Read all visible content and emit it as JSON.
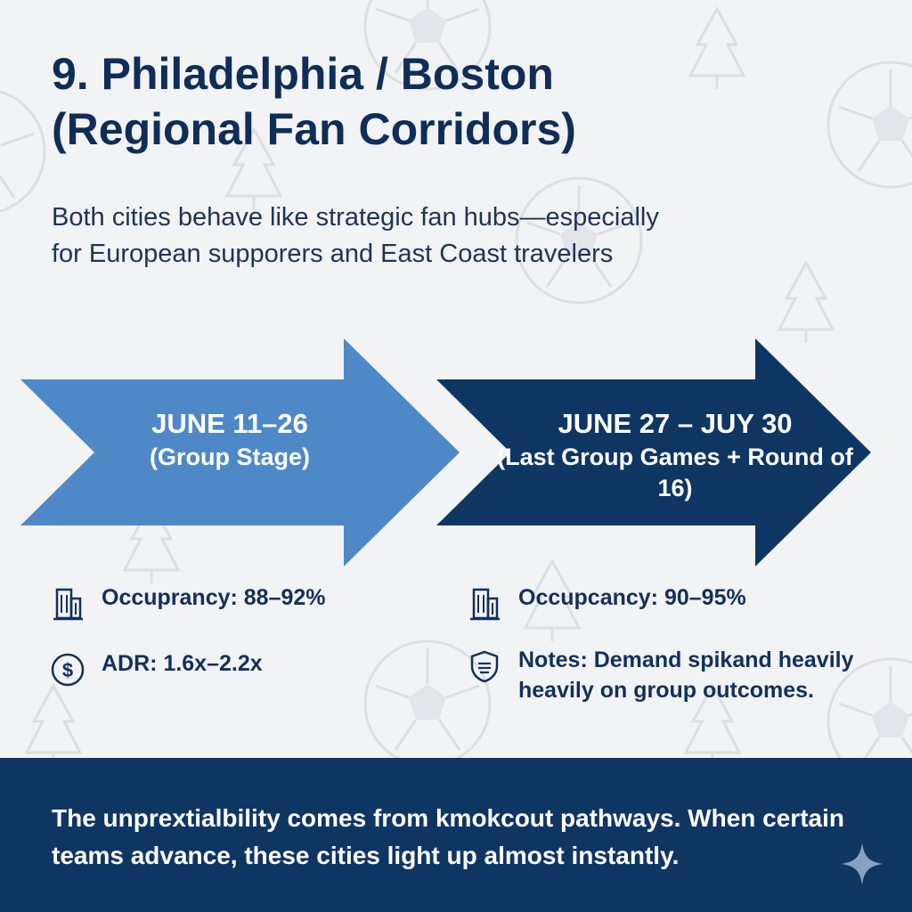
{
  "title": {
    "line1": "9. Philadelphia / Boston",
    "line2": "(Regional Fan Corridors)"
  },
  "subtitle": "Both cities behave like strategic fan hubs—especially for European supporers and East Coast travelers",
  "phases": [
    {
      "date": "JUNE 11–26",
      "label": "(Group Stage)",
      "color": "#4f88c6",
      "stats": [
        {
          "icon": "building-icon",
          "text": "Occuprancy: 88–92%"
        },
        {
          "icon": "dollar-circle-icon",
          "text": "ADR: 1.6x–2.2x"
        }
      ]
    },
    {
      "date": "JUNE 27 – JUY 30",
      "label": "(Last Group Games + Round of 16)",
      "color": "#0f3563",
      "stats": [
        {
          "icon": "building-icon",
          "text": "Occupcancy: 90–95%"
        },
        {
          "icon": "shield-icon",
          "text": "Notes: Demand spikand heavily heavily on group outcomes."
        }
      ]
    }
  ],
  "footer": {
    "text": "The unprextialbility comes from kmokcout pathways. When certain teams advance, these cities light up almost instantly.",
    "color": "#0f3563"
  },
  "colors": {
    "title": "#0f2d57",
    "background": "#f2f3f5",
    "accent_light": "#4f88c6",
    "accent_dark": "#0f3563"
  }
}
